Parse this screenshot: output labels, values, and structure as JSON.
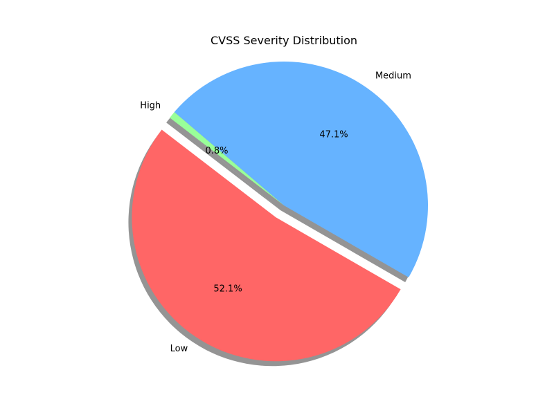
{
  "chart_data": {
    "type": "pie",
    "title": "CVSS Severity Distribution",
    "slices": [
      {
        "label": "Medium",
        "percent": 47.1,
        "percent_label": "47.1%",
        "color": "#66b3ff",
        "exploded": false
      },
      {
        "label": "High",
        "percent": 0.8,
        "percent_label": "0.8%",
        "color": "#99ff99",
        "exploded": false
      },
      {
        "label": "Low",
        "percent": 52.1,
        "percent_label": "52.1%",
        "color": "#ff6666",
        "exploded": true
      }
    ],
    "start_angle_deg": -30,
    "shadow": true
  }
}
